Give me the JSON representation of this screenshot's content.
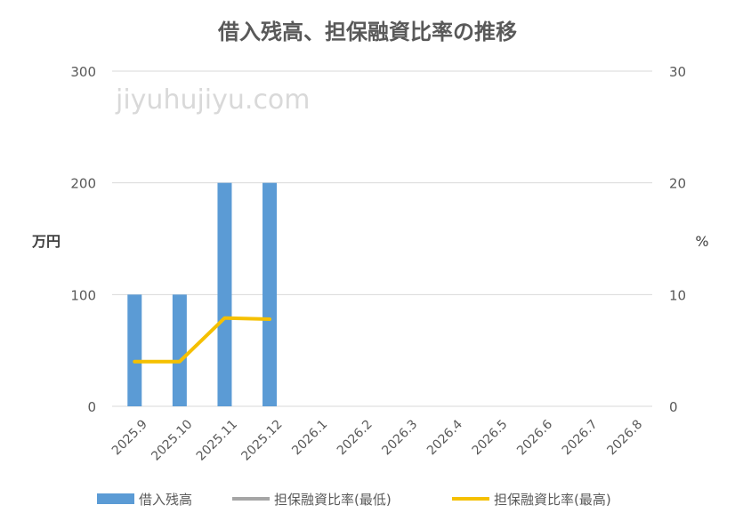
{
  "chart_data": {
    "type": "bar",
    "title": "借入残高、担保融資比率の推移",
    "watermark": "jiyuhujiyu.com",
    "categories": [
      "2025.9",
      "2025.10",
      "2025.11",
      "2025.12",
      "2026.1",
      "2026.2",
      "2026.3",
      "2026.4",
      "2026.5",
      "2026.6",
      "2026.7",
      "2026.8"
    ],
    "y_left": {
      "label": "万円",
      "ylim": [
        0,
        300
      ],
      "ticks": [
        "0",
        "100",
        "200",
        "300"
      ],
      "tick_values": [
        0,
        100,
        200,
        300
      ]
    },
    "y_right": {
      "label": "%",
      "ylim": [
        0,
        30
      ],
      "ticks": [
        "0",
        "10",
        "20",
        "30"
      ],
      "tick_values": [
        0,
        10,
        20,
        30
      ]
    },
    "grid": true,
    "legend_position": "bottom",
    "series": [
      {
        "name": "借入残高",
        "kind": "bar",
        "axis": "left",
        "color": "#5b9bd5",
        "values": [
          100,
          100,
          200,
          200,
          null,
          null,
          null,
          null,
          null,
          null,
          null,
          null
        ]
      },
      {
        "name": "担保融資比率(最低)",
        "kind": "line",
        "axis": "right",
        "color": "#a5a5a5",
        "values": [
          null,
          null,
          null,
          null,
          null,
          null,
          null,
          null,
          null,
          null,
          null,
          null
        ]
      },
      {
        "name": "担保融資比率(最高)",
        "kind": "line",
        "axis": "right",
        "color": "#f5c000",
        "values": [
          4.0,
          4.0,
          7.9,
          7.8,
          null,
          null,
          null,
          null,
          null,
          null,
          null,
          null
        ]
      }
    ]
  }
}
